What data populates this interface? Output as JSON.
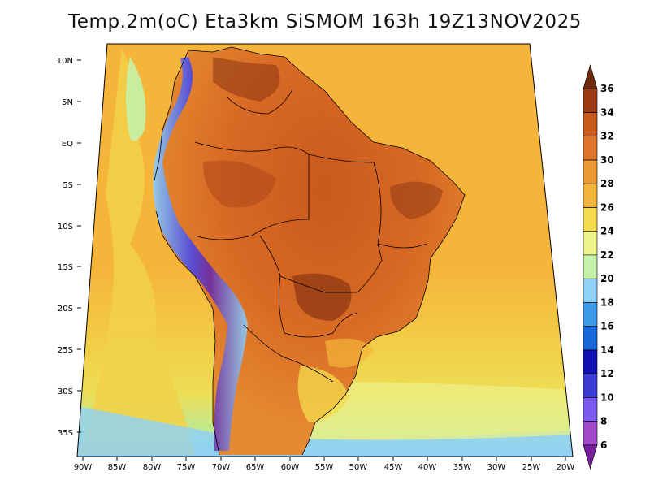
{
  "title": "Temp.2m(oC) Eta3km SiSMOM 163h 19Z13NOV2025",
  "colors": {
    "ocean_warm": "#f5b53b",
    "ocean_cool": "#eedd55",
    "ocean_cold": "#c9ec8c",
    "land_hot": "#e0752a",
    "land_hotter": "#c9591d",
    "land_hottest": "#8a3512",
    "andes_cold": "#6060ea",
    "border": "#000000"
  },
  "lat_labels": [
    "10N",
    "5N",
    "EQ",
    "5S",
    "10S",
    "15S",
    "20S",
    "25S",
    "30S",
    "35S"
  ],
  "lon_labels": [
    "90W",
    "85W",
    "80W",
    "75W",
    "70W",
    "65W",
    "60W",
    "55W",
    "50W",
    "45W",
    "40W",
    "35W",
    "30W",
    "25W",
    "20W"
  ],
  "colorbar": {
    "labels": [
      "6",
      "8",
      "10",
      "12",
      "14",
      "16",
      "18",
      "20",
      "22",
      "24",
      "26",
      "28",
      "30",
      "32",
      "34",
      "36"
    ],
    "colors": [
      "#7a1f9e",
      "#a04acb",
      "#7a5af0",
      "#3b3bd6",
      "#1010b4",
      "#1569d8",
      "#3d9bec",
      "#8fd1f7",
      "#c4f2a8",
      "#f0f58a",
      "#f4dc4e",
      "#f5b53b",
      "#ef9932",
      "#e0752a",
      "#c9591d",
      "#9c3a13",
      "#6f2a0c"
    ]
  }
}
